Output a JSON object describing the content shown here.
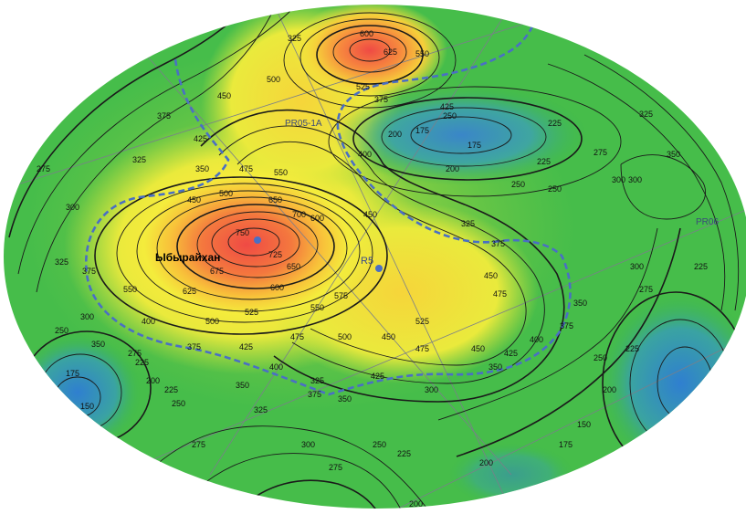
{
  "map": {
    "area_label": "Ыбырайхан",
    "wells": [
      "R5"
    ],
    "profiles": [
      "PR05-1A",
      "PR06"
    ],
    "colors": {
      "low": "#3d8fd0",
      "mid_low": "#3bb84a",
      "mid": "#a6d83a",
      "mid_high": "#f5e93a",
      "high": "#f5a43a",
      "peak": "#ef5a4a",
      "boundary": "#4a6fc4",
      "contour": "#1a1a1a"
    },
    "contour_labels": [
      "150",
      "175",
      "200",
      "225",
      "250",
      "275",
      "300",
      "325",
      "350",
      "375",
      "400",
      "425",
      "450",
      "475",
      "500",
      "525",
      "550",
      "575",
      "600",
      "625",
      "650",
      "675",
      "700",
      "725",
      "750"
    ],
    "labels": {
      "l600": "600",
      "l625a": "625",
      "l550a": "550",
      "l525a": "525",
      "l500a": "500",
      "l450a": "450",
      "l425a": "425",
      "l375a": "375",
      "l325a": "325",
      "l475a": "475",
      "l450b": "450",
      "l425b": "425",
      "l375b": "375",
      "l350a": "350",
      "l325b": "325",
      "l275a": "275",
      "l300a": "300",
      "l250a": "250",
      "l225a": "225",
      "l200a": "200",
      "l175a": "175",
      "l175b": "175",
      "l200b": "200",
      "l225b": "225",
      "l250b": "250",
      "l350b": "350",
      "l325c": "325",
      "l300b": "300",
      "l700": "700",
      "l650a": "650",
      "l600b": "600",
      "l550b": "550",
      "l500b": "500",
      "l450c": "450",
      "l400a": "400",
      "l750": "750",
      "l725": "725",
      "l675": "675",
      "l625b": "625",
      "l650b": "650",
      "l600c": "600",
      "l575": "575",
      "l550c": "550",
      "l525b": "525",
      "l500c": "500",
      "l475b": "475",
      "l450d": "450",
      "l425c": "425",
      "l400b": "400",
      "l375c": "375",
      "l350c": "350",
      "l325d": "325",
      "l350d": "350",
      "l375d": "375",
      "l325e": "325",
      "l300c": "300",
      "l275b": "275",
      "l250c": "250",
      "l225c": "225",
      "l175c": "175",
      "l150a": "150",
      "l200c": "200",
      "l225d": "225",
      "l250d": "250",
      "l275c": "275",
      "l300d": "300",
      "l350e": "350",
      "l375e": "375",
      "l325f": "325",
      "l300e": "300",
      "l275d": "275",
      "l250e": "250",
      "l225e": "225",
      "l200d": "200",
      "l450e": "450",
      "l475c": "475",
      "l425d": "425",
      "l400c": "400",
      "l375f": "375",
      "l350f": "350",
      "l325g": "325",
      "l300f": "300",
      "l275e": "275",
      "l250f": "250",
      "l225f": "225",
      "l200e": "200",
      "l175d": "175",
      "l150b": "150",
      "l300g": "300",
      "l275f": "275",
      "l250g": "250",
      "l225g": "225",
      "l200f": "200",
      "l350g": "350",
      "l375g": "375",
      "l425e": "425",
      "l450f": "450",
      "l475d": "475",
      "l500d": "500",
      "l525c": "525",
      "l550d": "550",
      "l400d": "400"
    }
  }
}
